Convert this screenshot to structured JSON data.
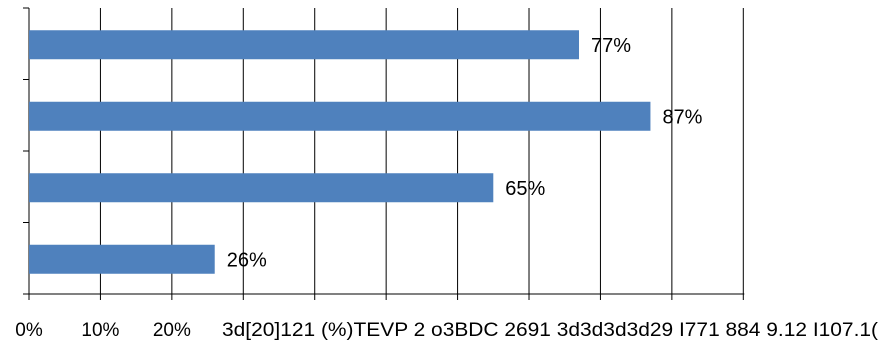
{
  "chart_data": {
    "type": "bar",
    "orientation": "horizontal",
    "categories": [
      "",
      "",
      "",
      ""
    ],
    "values": [
      26,
      65,
      87,
      77
    ],
    "data_labels": [
      "26%",
      "65%",
      "87%",
      "77%"
    ],
    "x_ticks": [
      "0%",
      "10%",
      "20%"
    ],
    "x_garbled_text": "3d[20]121 (%)TEVP 2 o3BDC 2691 3d3d3d3d29 I771 884 9.12 I107.1(",
    "xlim": [
      0,
      100
    ],
    "grid": true,
    "legend": "none",
    "bar_color": "#4F81BD",
    "grid_color": "#000000",
    "title": "",
    "xlabel": "",
    "ylabel": ""
  }
}
